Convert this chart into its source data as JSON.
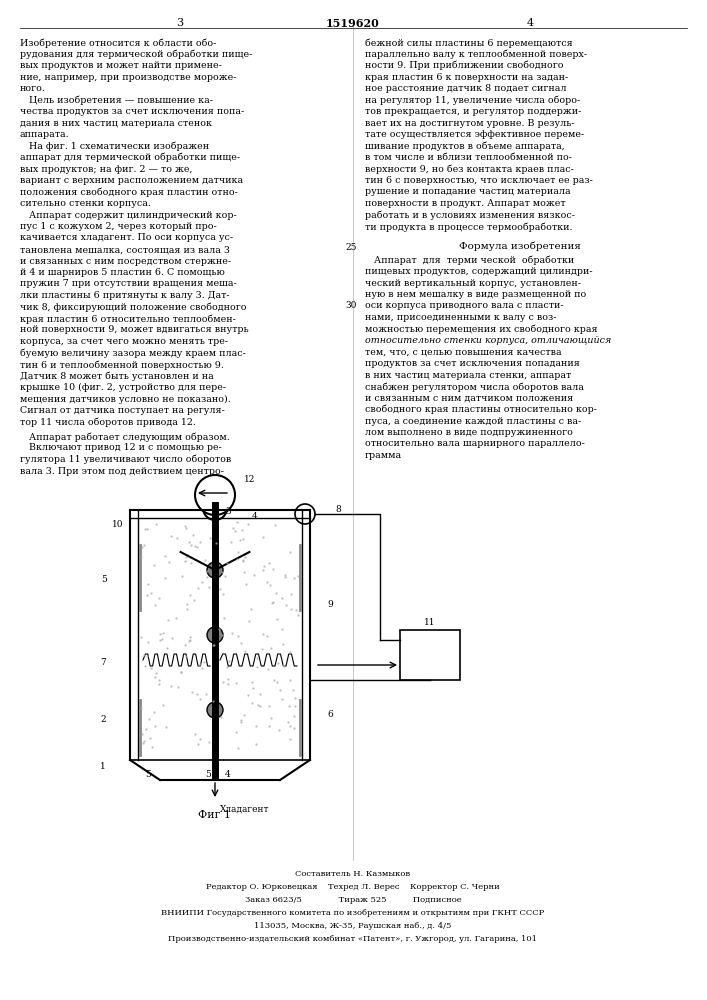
{
  "page_width": 7.07,
  "page_height": 10.0,
  "bg_color": "#ffffff",
  "text_color": "#000000",
  "header_number": "1519620",
  "page_left": "3",
  "page_right": "4",
  "left_column_text": [
    "Изобретение относится к области обо-",
    "рудования для термической обработки пище-",
    "вых продуктов и может найти примене-",
    "ние, например, при производстве мороже-",
    "ного.",
    "   Цель изобретения — повышение ка-",
    "чества продуктов за счет исключения попа-",
    "дания в них частиц материала стенок",
    "аппарата.",
    "   На фиг. 1 схематически изображен",
    "аппарат для термической обработки пище-",
    "вых продуктов; на фиг. 2 — то же,",
    "вариант с верхним расположением датчика",
    "положения свободного края пластин отно-",
    "сительно стенки корпуса.",
    "   Аппарат содержит цилиндрический кор-",
    "пус 1 с кожухом 2, через который про-",
    "качивается хладагент. По оси корпуса ус-",
    "тановлена мешалка, состоящая из вала 3",
    "и связанных с ним посредством стержне-",
    "й 4 и шарниров 5 пластин 6. С помощью",
    "пружин 7 при отсутствии вращения меша-",
    "лки пластины 6 притянуты к валу 3. Дат-",
    "чик 8, фиксирующий положение свободного",
    "края пластин 6 относительно теплообмен-",
    "ной поверхности 9, может вдвигаться внутрь",
    "корпуса, за счет чего можно менять тре-",
    "буемую величину зазора между краем плас-",
    "тин 6 и теплообменной поверхностью 9.",
    "Датчик 8 может быть установлен и на",
    "крышке 10 (фиг. 2, устройство для пере-",
    "мещения датчиков условно не показано).",
    "Сигнал от датчика поступает на регуля-",
    "тор 11 числа оборотов привода 12."
  ],
  "left_column_text2": [
    "   Аппарат работает следующим образом.",
    "   Включают привод 12 и с помощью ре-",
    "гулятора 11 увеличивают число оборотов",
    "вала 3. При этом под действием центро-"
  ],
  "right_column_text": [
    "бежной силы пластины 6 перемещаются",
    "параллельно валу к теплообменной поверх-",
    "ности 9. При приближении свободного",
    "края пластин 6 к поверхности на задан-",
    "ное расстояние датчик 8 подает сигнал",
    "на регулятор 11, увеличение числа оборо-",
    "тов прекращается, и регулятор поддержи-",
    "вает их на достигнутом уровне. В резуль-",
    "тате осуществляется эффективное переме-",
    "шивание продуктов в объеме аппарата,",
    "в том числе и вблизи теплообменной по-",
    "верхности 9, но без контакта краев плас-",
    "тин 6 с поверхностью, что исключает ее раз-",
    "рушение и попадание частиц материала",
    "поверхности в продукт. Аппарат может",
    "работать и в условиях изменения вязкос-",
    "ти продукта в процессе термообработки."
  ],
  "formula_title": "Формула изобретения",
  "formula_text": [
    "   Аппарат  для  терми ческой  обработки",
    "пищевых продуктов, содержащий цилиндри-",
    "ческий вертикальный корпус, установлен-",
    "ную в нем мешалку в виде размещенной по",
    "оси корпуса приводного вала с пласти-",
    "нами, присоединенными к валу с воз-",
    "можностью перемещения их свободного края",
    "относительно стенки корпуса, отличающийся",
    "тем, что, с целью повышения качества",
    "продуктов за счет исключения попадания",
    "в них частиц материала стенки, аппарат",
    "снабжен регулятором числа оборотов вала",
    "и связанным с ним датчиком положения",
    "свободного края пластины относительно кор-",
    "пуса, а соединение каждой пластины с ва-",
    "лом выполнено в виде подпружиненного",
    "относительно вала шарнирного параллело-",
    "грамма"
  ],
  "fig_label": "Фиг 1",
  "fig_numbers": {
    "label_10": "10",
    "label_12": "12",
    "label_3": "3",
    "label_4_top": "4",
    "label_8": "8",
    "label_5_left": "5",
    "label_7": "7",
    "label_2": "2",
    "label_1": "1",
    "label_5_bot1": "5",
    "label_5_bot2": "5",
    "label_4_bot": "4",
    "label_9": "9",
    "label_6": "6",
    "label_11": "11",
    "label_khlad": "Хладагент"
  },
  "footer_text": [
    "Составитель Н. Казмыков",
    "Редактор О. Юрковецкая    Техред Л. Верес    Корректор С. Черни",
    "Заказ 6623/5              Тираж 525          Подписное",
    "ВНИИПИ Государственного комитета по изобретениям и открытиям при ГКНТ СССР",
    "113035, Москва, Ж-35, Раушская наб., д. 4/5",
    "Производственно-издательский комбинат «Патент», г. Ужгород, ул. Гагарина, 101"
  ],
  "line_numbers": [
    "25",
    "30"
  ]
}
